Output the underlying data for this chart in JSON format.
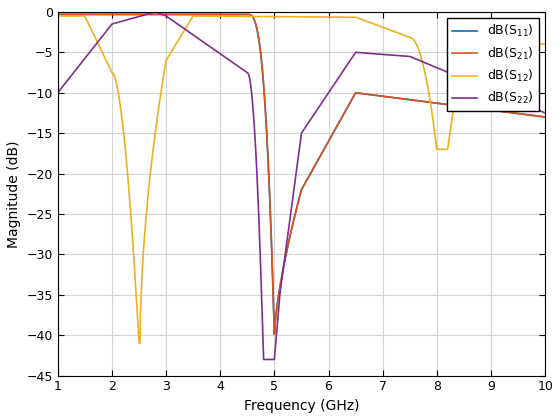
{
  "title": "",
  "xlabel": "Frequency (GHz)",
  "ylabel": "Magnitude (dB)",
  "xlim": [
    1,
    10
  ],
  "ylim": [
    -45,
    0
  ],
  "yticks": [
    0,
    -5,
    -10,
    -15,
    -20,
    -25,
    -30,
    -35,
    -40,
    -45
  ],
  "xticks": [
    1,
    2,
    3,
    4,
    5,
    6,
    7,
    8,
    9,
    10
  ],
  "colors": {
    "S11": "#0072BD",
    "S21": "#D95319",
    "S12": "#EDB120",
    "S22": "#7E2F8E"
  },
  "background_color": "#ffffff",
  "grid_color": "#d3d3d3"
}
